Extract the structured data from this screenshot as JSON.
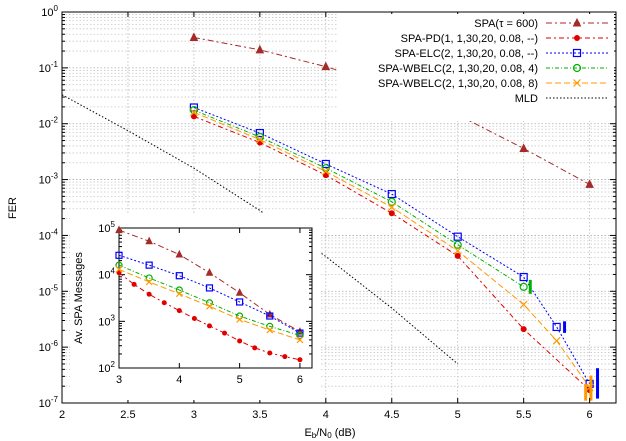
{
  "chart_data": [
    {
      "type": "line",
      "xlabel": "E_b/N_0 (dB)",
      "ylabel": "FER",
      "xlim": [
        2,
        6.2
      ],
      "ylim_log10": [
        -7,
        0
      ],
      "yscale": "log",
      "grid": "major+minor",
      "legend_position": "top-right",
      "xticks": [
        "2",
        "2.5",
        "3",
        "3.5",
        "4",
        "4.5",
        "5",
        "5.5",
        "6"
      ],
      "yticks": [
        {
          "base": "10",
          "exp": "0"
        },
        {
          "base": "10",
          "exp": "-1"
        },
        {
          "base": "10",
          "exp": "-2"
        },
        {
          "base": "10",
          "exp": "-3"
        },
        {
          "base": "10",
          "exp": "-4"
        },
        {
          "base": "10",
          "exp": "-5"
        },
        {
          "base": "10",
          "exp": "-6"
        },
        {
          "base": "10",
          "exp": "-7"
        }
      ],
      "series": [
        {
          "name": "SPA(τ = 600)",
          "color": "#a52a2a",
          "dash": "6,3,2,3",
          "marker": "triangle",
          "x": [
            3,
            3.5,
            4,
            4.5,
            5,
            5.5,
            6
          ],
          "y": [
            0.35,
            0.21,
            0.105,
            0.046,
            0.0145,
            0.0036,
            0.00082
          ]
        },
        {
          "name": "SPA-PD(1, 1,30,20, 0.08, --)",
          "color": "#e00000",
          "dash": "5,3,2,3",
          "marker": "dot",
          "x": [
            3,
            3.5,
            4,
            4.5,
            5,
            5.5,
            6
          ],
          "y": [
            0.0135,
            0.0046,
            0.0012,
            0.00025,
            4.3e-05,
            2.1e-06,
            1.7e-07
          ]
        },
        {
          "name": "SPA-ELC(2, 1,30,20, 0.08, --)",
          "color": "#0000ff",
          "dash": "2,2",
          "marker": "square",
          "x": [
            3,
            3.5,
            4,
            4.5,
            5,
            5.5,
            5.75,
            6
          ],
          "y": [
            0.0195,
            0.0068,
            0.0019,
            0.00055,
            9.5e-05,
            1.8e-05,
            2.3e-06,
            2.2e-07
          ]
        },
        {
          "name": "SPA-WBELC(2, 1,30,20, 0.08, 4)",
          "color": "#00b000",
          "dash": "4,2,1,2",
          "marker": "circle",
          "x": [
            3,
            3.5,
            4,
            4.5,
            5,
            5.5
          ],
          "y": [
            0.0175,
            0.0058,
            0.0016,
            0.0004,
            6.8e-05,
            1.2e-05
          ]
        },
        {
          "name": "SPA-WBELC(2, 1,30,20, 0.08, 8)",
          "color": "#ff9900",
          "dash": "6,3",
          "marker": "cross",
          "x": [
            3,
            3.5,
            4,
            4.5,
            5,
            5.5,
            5.75,
            6
          ],
          "y": [
            0.016,
            0.0052,
            0.0014,
            0.00032,
            5.3e-05,
            5.8e-06,
            1.3e-06,
            1.9e-07
          ]
        },
        {
          "name": "MLD",
          "color": "#000000",
          "dash": "1.5,2",
          "marker": "none",
          "x": [
            2,
            2.5,
            3,
            3.5,
            4,
            4.5,
            5
          ],
          "y": [
            0.033,
            0.0075,
            0.0016,
            0.00028,
            4.2e-05,
            5e-06,
            5e-07
          ]
        }
      ],
      "confidence_bars": [
        {
          "series": "SPA-WBELC(2, 1,30,20, 0.08, 4)",
          "x": 5.55,
          "y": [
            9e-06,
            1.6e-05
          ]
        },
        {
          "series": "SPA-ELC(2, 1,30,20, 0.08, --)",
          "x": 5.81,
          "y": [
            1.8e-06,
            2.9e-06
          ]
        },
        {
          "series": "SPA-WBELC(2, 1,30,20, 0.08, 8)",
          "x": 5.97,
          "y": [
            1.1e-07,
            2.2e-07
          ]
        },
        {
          "series": "SPA-WBELC(2, 1,30,20, 0.08, 8)",
          "x": 6.01,
          "y": [
            1.1e-07,
            3.1e-07
          ]
        },
        {
          "series": "SPA-ELC(2, 1,30,20, 0.08, --)",
          "x": 6.06,
          "y": [
            1.2e-07,
            4.2e-07
          ]
        }
      ]
    },
    {
      "type": "line",
      "inset": true,
      "ylabel": "Av. SPA Messages",
      "xlim": [
        3,
        6.2
      ],
      "ylim_log10": [
        2,
        5
      ],
      "yscale": "log",
      "xticks": [
        "3",
        "4",
        "5",
        "6"
      ],
      "yticks": [
        {
          "base": "10",
          "exp": "5"
        },
        {
          "base": "10",
          "exp": "4"
        },
        {
          "base": "10",
          "exp": "3"
        },
        {
          "base": "10",
          "exp": "2"
        }
      ],
      "series": [
        {
          "name": "SPA(τ = 600)",
          "x": [
            3,
            3.5,
            4,
            4.5,
            5,
            5.5,
            6
          ],
          "y": [
            90000,
            52000,
            27000,
            11000,
            4100,
            1400,
            600
          ]
        },
        {
          "name": "SPA-PD(1, 1,30,20, 0.08, --)",
          "x": [
            3,
            3.25,
            3.5,
            3.75,
            4,
            4.25,
            4.5,
            4.75,
            5,
            5.25,
            5.5,
            5.75,
            6
          ],
          "y": [
            11000,
            6200,
            3800,
            2500,
            1700,
            1150,
            800,
            560,
            380,
            270,
            210,
            175,
            150
          ]
        },
        {
          "name": "SPA-ELC(2, 1,30,20, 0.08, --)",
          "x": [
            3,
            3.5,
            4,
            4.5,
            5,
            5.5,
            6
          ],
          "y": [
            26000,
            16000,
            9500,
            5200,
            2600,
            1300,
            560
          ]
        },
        {
          "name": "SPA-WBELC(2, 1,30,20, 0.08, 4)",
          "x": [
            3,
            3.5,
            4,
            4.5,
            5,
            5.5,
            6
          ],
          "y": [
            16000,
            8500,
            4700,
            2500,
            1300,
            780,
            500
          ]
        },
        {
          "name": "SPA-WBELC(2, 1,30,20, 0.08, 8)",
          "x": [
            3,
            3.5,
            4,
            4.5,
            5,
            5.5,
            6
          ],
          "y": [
            13000,
            7000,
            3900,
            2100,
            1100,
            650,
            400
          ]
        }
      ]
    }
  ]
}
